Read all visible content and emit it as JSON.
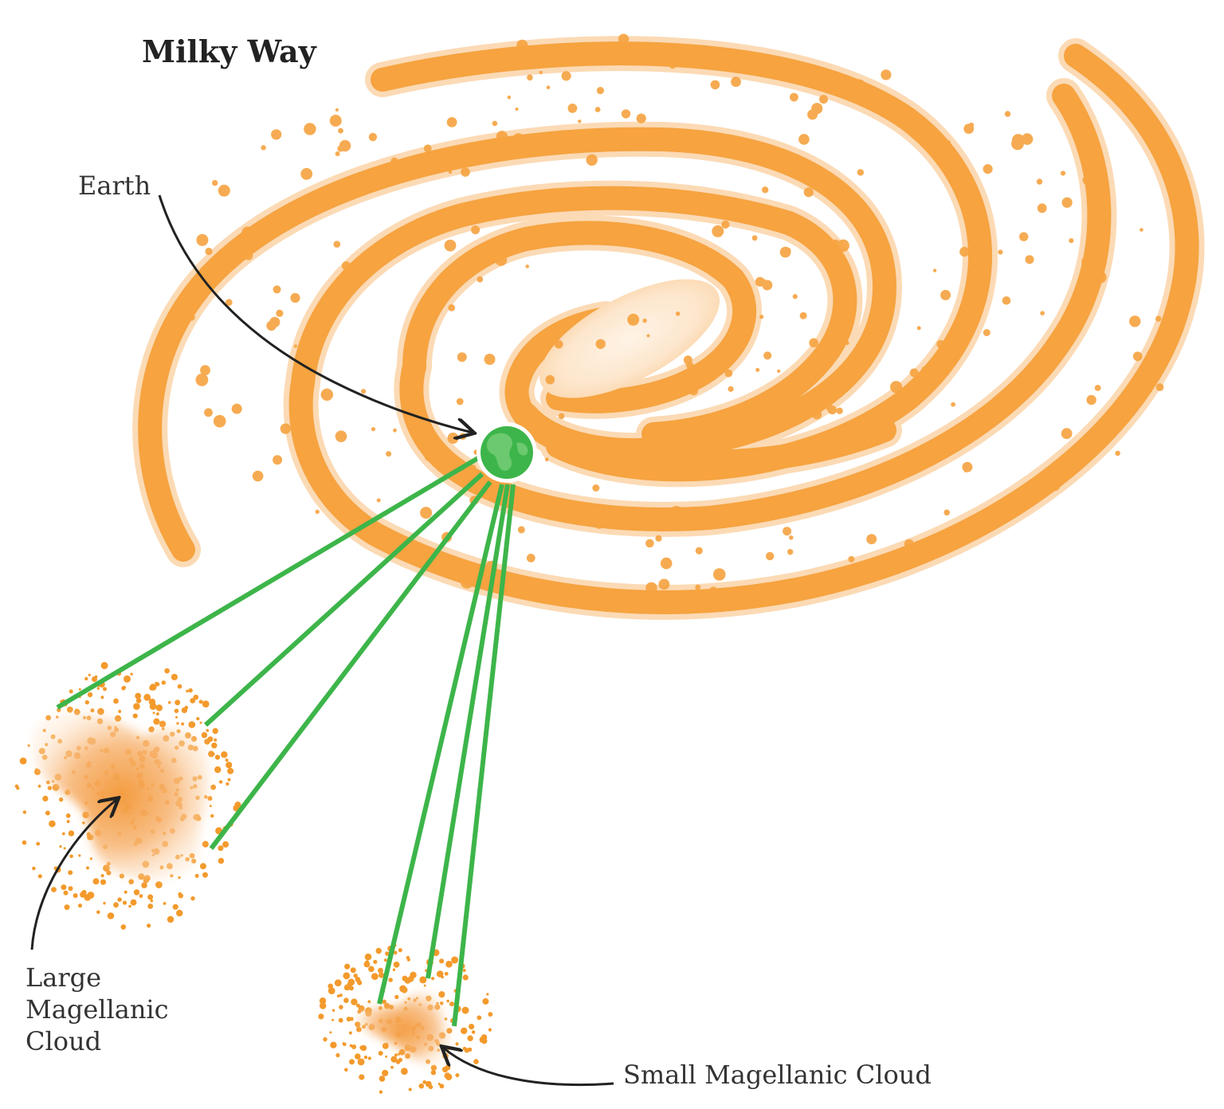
{
  "title": "Milky Way",
  "labels": {
    "earth": "Earth",
    "lmc_line1": "Large",
    "lmc_line2": "Magellanic",
    "lmc_line3": "Cloud",
    "smc": "Small Magellanic Cloud"
  },
  "colors": {
    "arm": "#f6a340",
    "arm_glow": "#fbd7ad",
    "core": "#fde9d4",
    "dot": "#f39a2c",
    "earth": "#3db54a",
    "sightline": "#3db54a",
    "arrow": "#222222",
    "text": "#333333"
  },
  "sightlines": {
    "to_large_cloud": 3,
    "to_small_cloud": 3
  }
}
